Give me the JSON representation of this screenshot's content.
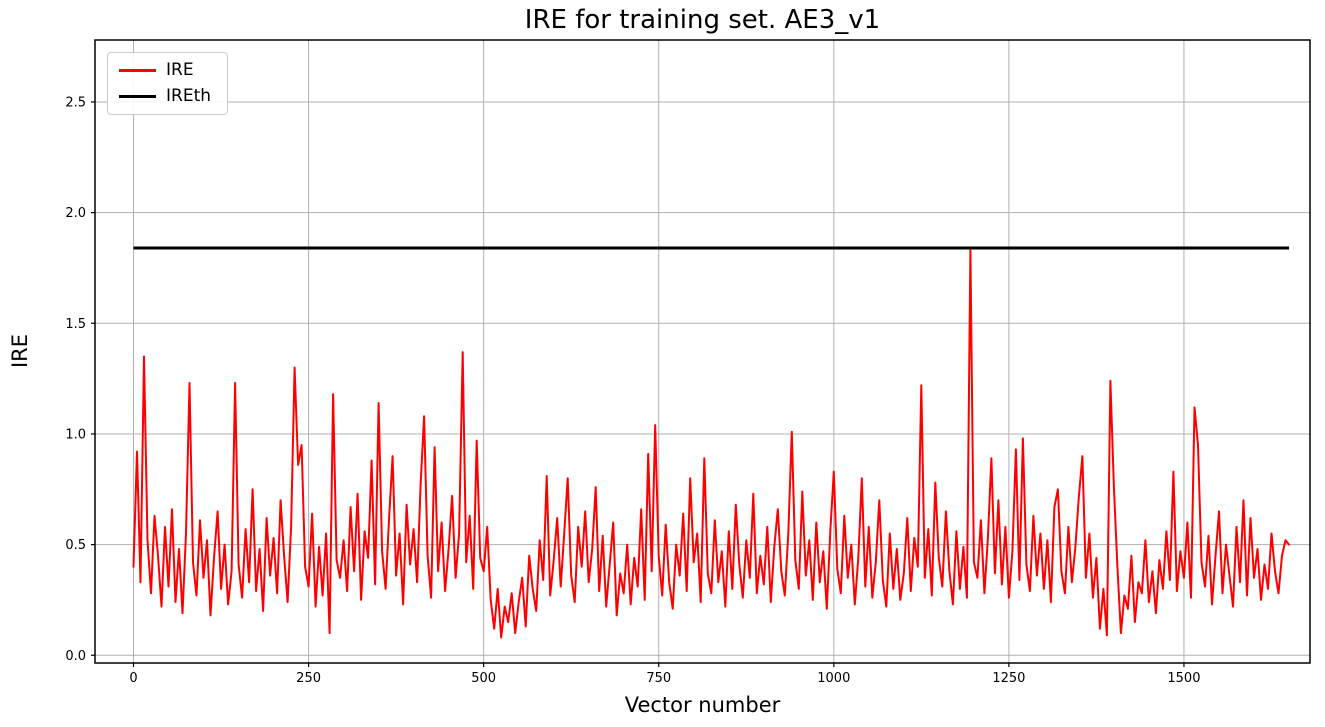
{
  "chart_data": {
    "type": "line",
    "title": "IRE for training set. AE3_v1",
    "xlabel": "Vector number",
    "ylabel": "IRE",
    "grid": true,
    "xlim": [
      -55,
      1680
    ],
    "ylim": [
      -0.035,
      2.78
    ],
    "x_ticks": [
      0,
      250,
      500,
      750,
      1000,
      1250,
      1500
    ],
    "x_tick_labels": [
      "0",
      "250",
      "500",
      "750",
      "1000",
      "1250",
      "1500"
    ],
    "y_ticks": [
      0.0,
      0.5,
      1.0,
      1.5,
      2.0,
      2.5
    ],
    "y_tick_labels": [
      "0.0",
      "0.5",
      "1.0",
      "1.5",
      "2.0",
      "2.5"
    ],
    "colors": {
      "ire": "#ff0000",
      "ireth": "#000000",
      "grid": "#b0b0b0",
      "spine": "#000000",
      "text": "#000000",
      "background": "#ffffff"
    },
    "legend": {
      "position": "upper left",
      "items": [
        {
          "label": "IRE",
          "color": "#ff0000"
        },
        {
          "label": "IREth",
          "color": "#000000"
        }
      ]
    },
    "series": [
      {
        "name": "IRE",
        "color": "#ff0000",
        "x_start": 0,
        "x_step": 5,
        "values": [
          0.4,
          0.92,
          0.33,
          1.35,
          0.52,
          0.28,
          0.63,
          0.45,
          0.22,
          0.58,
          0.31,
          0.66,
          0.24,
          0.48,
          0.19,
          0.55,
          1.23,
          0.42,
          0.27,
          0.61,
          0.35,
          0.52,
          0.18,
          0.44,
          0.65,
          0.3,
          0.5,
          0.23,
          0.38,
          1.23,
          0.41,
          0.26,
          0.57,
          0.33,
          0.75,
          0.29,
          0.48,
          0.2,
          0.62,
          0.36,
          0.53,
          0.28,
          0.7,
          0.45,
          0.24,
          0.58,
          1.3,
          0.86,
          0.95,
          0.4,
          0.31,
          0.64,
          0.22,
          0.49,
          0.27,
          0.55,
          0.1,
          1.18,
          0.43,
          0.35,
          0.52,
          0.29,
          0.67,
          0.38,
          0.73,
          0.25,
          0.56,
          0.44,
          0.88,
          0.32,
          1.14,
          0.47,
          0.3,
          0.62,
          0.9,
          0.36,
          0.55,
          0.23,
          0.68,
          0.41,
          0.57,
          0.33,
          0.77,
          1.08,
          0.45,
          0.26,
          0.94,
          0.38,
          0.6,
          0.29,
          0.48,
          0.72,
          0.35,
          0.55,
          1.37,
          0.42,
          0.63,
          0.3,
          0.97,
          0.44,
          0.38,
          0.58,
          0.25,
          0.12,
          0.3,
          0.08,
          0.22,
          0.15,
          0.28,
          0.1,
          0.24,
          0.35,
          0.13,
          0.45,
          0.3,
          0.2,
          0.52,
          0.34,
          0.81,
          0.27,
          0.43,
          0.62,
          0.31,
          0.55,
          0.8,
          0.36,
          0.24,
          0.58,
          0.4,
          0.65,
          0.33,
          0.48,
          0.76,
          0.29,
          0.54,
          0.22,
          0.41,
          0.6,
          0.18,
          0.37,
          0.28,
          0.5,
          0.23,
          0.44,
          0.31,
          0.66,
          0.25,
          0.91,
          0.38,
          1.04,
          0.45,
          0.27,
          0.59,
          0.33,
          0.21,
          0.5,
          0.36,
          0.64,
          0.29,
          0.8,
          0.42,
          0.55,
          0.24,
          0.89,
          0.37,
          0.28,
          0.61,
          0.33,
          0.47,
          0.22,
          0.56,
          0.3,
          0.68,
          0.41,
          0.26,
          0.52,
          0.35,
          0.73,
          0.28,
          0.45,
          0.32,
          0.58,
          0.24,
          0.49,
          0.66,
          0.38,
          0.27,
          0.55,
          1.01,
          0.43,
          0.3,
          0.74,
          0.36,
          0.52,
          0.25,
          0.6,
          0.33,
          0.47,
          0.21,
          0.56,
          0.83,
          0.39,
          0.28,
          0.63,
          0.35,
          0.5,
          0.23,
          0.44,
          0.8,
          0.31,
          0.58,
          0.26,
          0.42,
          0.7,
          0.34,
          0.22,
          0.55,
          0.3,
          0.48,
          0.25,
          0.37,
          0.62,
          0.29,
          0.53,
          0.4,
          1.22,
          0.35,
          0.57,
          0.27,
          0.78,
          0.44,
          0.31,
          0.65,
          0.38,
          0.23,
          0.56,
          0.3,
          0.49,
          0.26,
          1.83,
          0.42,
          0.35,
          0.61,
          0.28,
          0.53,
          0.89,
          0.37,
          0.7,
          0.32,
          0.58,
          0.26,
          0.47,
          0.93,
          0.34,
          0.98,
          0.41,
          0.29,
          0.63,
          0.36,
          0.55,
          0.3,
          0.52,
          0.24,
          0.67,
          0.75,
          0.38,
          0.28,
          0.58,
          0.33,
          0.49,
          0.72,
          0.9,
          0.35,
          0.55,
          0.26,
          0.44,
          0.12,
          0.3,
          0.09,
          1.24,
          0.76,
          0.4,
          0.1,
          0.27,
          0.21,
          0.45,
          0.15,
          0.33,
          0.28,
          0.52,
          0.24,
          0.38,
          0.19,
          0.43,
          0.3,
          0.56,
          0.34,
          0.83,
          0.29,
          0.47,
          0.35,
          0.6,
          0.26,
          1.12,
          0.95,
          0.42,
          0.31,
          0.54,
          0.23,
          0.45,
          0.65,
          0.28,
          0.5,
          0.36,
          0.22,
          0.58,
          0.33,
          0.7,
          0.27,
          0.62,
          0.35,
          0.48,
          0.25,
          0.41,
          0.3,
          0.55,
          0.38,
          0.28,
          0.45,
          0.52,
          0.5
        ]
      },
      {
        "name": "IREth",
        "type": "hline",
        "color": "#000000",
        "y": 1.84,
        "x_range": [
          0,
          1650
        ]
      }
    ]
  }
}
